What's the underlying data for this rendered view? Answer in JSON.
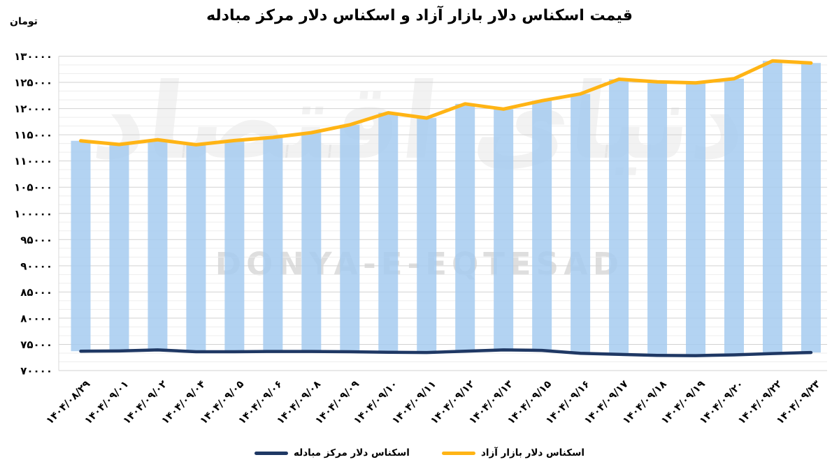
{
  "header": {
    "title": "قیمت اسکناس دلار بازار آزاد و اسکناس دلار مرکز مبادله",
    "unit_label": "تومان"
  },
  "watermark": {
    "persian": "دنیای اقتصاد",
    "latin": "DONYA-E-EQTESAD"
  },
  "colors": {
    "bar_fill": "#A6CBF0",
    "azad": "#FFB415",
    "mobadele": "#1F3864",
    "grid_major": "#D2D2D2",
    "grid_minor": "#EDEDED",
    "axis": "#D9D9D9",
    "text": "#000000"
  },
  "legend": {
    "items": [
      {
        "key": "mobadele",
        "label": "اسکناس دلار مرکز مبادله",
        "color": "#1F3864"
      },
      {
        "key": "azad",
        "label": "اسکناس دلار بازار آزاد",
        "color": "#FFB415"
      }
    ]
  },
  "chart_data": {
    "type": "bar",
    "line_overlay": true,
    "title": "قیمت اسکناس دلار بازار آزاد و اسکناس دلار مرکز مبادله",
    "ylabel": "تومان",
    "xlabel": "",
    "grid": "horizontal",
    "legend_position": "bottom",
    "ylim": [
      70000,
      130000
    ],
    "ytick_step": 5000,
    "bars_span_between_series": true,
    "categories": [
      "۱۴۰۴/۰۸/۲۹",
      "۱۴۰۴/۰۹/۰۱",
      "۱۴۰۴/۰۹/۰۲",
      "۱۴۰۴/۰۹/۰۴",
      "۱۴۰۴/۰۹/۰۵",
      "۱۴۰۴/۰۹/۰۶",
      "۱۴۰۴/۰۹/۰۸",
      "۱۴۰۴/۰۹/۰۹",
      "۱۴۰۴/۰۹/۱۰",
      "۱۴۰۴/۰۹/۱۱",
      "۱۴۰۴/۰۹/۱۲",
      "۱۴۰۴/۰۹/۱۳",
      "۱۴۰۴/۰۹/۱۵",
      "۱۴۰۴/۰۹/۱۶",
      "۱۴۰۴/۰۹/۱۷",
      "۱۴۰۴/۰۹/۱۸",
      "۱۴۰۴/۰۹/۱۹",
      "۱۴۰۴/۰۹/۲۰",
      "۱۴۰۴/۰۹/۲۲",
      "۱۴۰۴/۰۹/۲۳"
    ],
    "series": [
      {
        "name": "اسکناس دلار بازار آزاد",
        "render": "bar+line",
        "color": "#FFB415",
        "values": [
          113850,
          113150,
          114050,
          113100,
          113900,
          114500,
          115400,
          116900,
          119200,
          118200,
          120900,
          119900,
          121500,
          122800,
          125600,
          125100,
          124900,
          125700,
          129100,
          128700
        ]
      },
      {
        "name": "اسکناس دلار مرکز مبادله",
        "render": "line",
        "color": "#1F3864",
        "values": [
          73700,
          73750,
          73950,
          73600,
          73600,
          73650,
          73650,
          73600,
          73500,
          73450,
          73700,
          73950,
          73850,
          73300,
          73100,
          72900,
          72850,
          73000,
          73250,
          73450
        ]
      }
    ],
    "yticks": [
      {
        "value": 70000,
        "label": "۷۰۰۰۰"
      },
      {
        "value": 75000,
        "label": "۷۵۰۰۰"
      },
      {
        "value": 80000,
        "label": "۸۰۰۰۰"
      },
      {
        "value": 85000,
        "label": "۸۵۰۰۰"
      },
      {
        "value": 90000,
        "label": "۹۰۰۰۰"
      },
      {
        "value": 95000,
        "label": "۹۵۰۰۰"
      },
      {
        "value": 100000,
        "label": "۱۰۰۰۰۰"
      },
      {
        "value": 105000,
        "label": "۱۰۵۰۰۰"
      },
      {
        "value": 110000,
        "label": "۱۱۰۰۰۰"
      },
      {
        "value": 115000,
        "label": "۱۱۵۰۰۰"
      },
      {
        "value": 120000,
        "label": "۱۲۰۰۰۰"
      },
      {
        "value": 125000,
        "label": "۱۲۵۰۰۰"
      },
      {
        "value": 130000,
        "label": "۱۳۰۰۰۰"
      }
    ]
  }
}
